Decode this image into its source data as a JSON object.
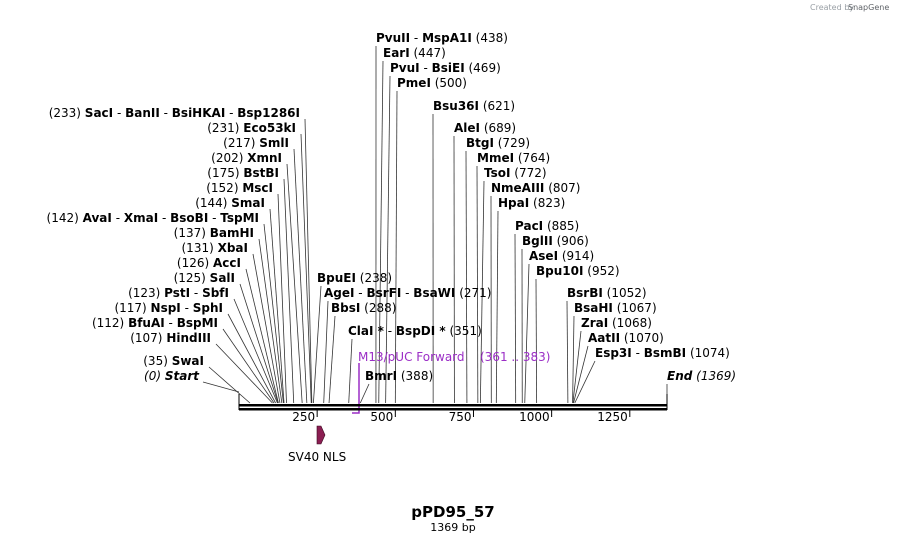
{
  "credit": {
    "prefix": "Created by",
    "brand": "SnapGene"
  },
  "plasmid": {
    "name": "pPD95_57",
    "length_label": "1369 bp",
    "length_bp": 1369
  },
  "axis": {
    "ticks": [
      "250",
      "500",
      "750",
      "1000",
      "1250"
    ]
  },
  "feature": {
    "label": "SV40 NLS",
    "color": "#8b1e52"
  },
  "primer": {
    "label": "M13/pUC Forward",
    "range": "(361 .. 383)",
    "color": "#9b2ec6"
  },
  "sites_left": [
    {
      "names": [
        "SacI",
        "BanII",
        "BsiHKAI",
        "Bsp1286I"
      ],
      "pos": "(233)",
      "bp": 233
    },
    {
      "names": [
        "Eco53kI"
      ],
      "pos": "(231)",
      "bp": 231
    },
    {
      "names": [
        "SmlI"
      ],
      "pos": "(217)",
      "bp": 217
    },
    {
      "names": [
        "XmnI"
      ],
      "pos": "(202)",
      "bp": 202
    },
    {
      "names": [
        "BstBI"
      ],
      "pos": "(175)",
      "bp": 175
    },
    {
      "names": [
        "MscI"
      ],
      "pos": "(152)",
      "bp": 152
    },
    {
      "names": [
        "SmaI"
      ],
      "pos": "(144)",
      "bp": 144
    },
    {
      "names": [
        "AvaI",
        "XmaI",
        "BsoBI",
        "TspMI"
      ],
      "pos": "(142)",
      "bp": 142
    },
    {
      "names": [
        "BamHI"
      ],
      "pos": "(137)",
      "bp": 137
    },
    {
      "names": [
        "XbaI"
      ],
      "pos": "(131)",
      "bp": 131
    },
    {
      "names": [
        "AccI"
      ],
      "pos": "(126)",
      "bp": 126
    },
    {
      "names": [
        "SalI"
      ],
      "pos": "(125)",
      "bp": 125
    },
    {
      "names": [
        "PstI",
        "SbfI"
      ],
      "pos": "(123)",
      "bp": 123
    },
    {
      "names": [
        "NspI",
        "SphI"
      ],
      "pos": "(117)",
      "bp": 117
    },
    {
      "names": [
        "BfuAI",
        "BspMI"
      ],
      "pos": "(112)",
      "bp": 112
    },
    {
      "names": [
        "HindIII"
      ],
      "pos": "(107)",
      "bp": 107
    },
    {
      "names": [
        "SwaI"
      ],
      "pos": "(35)",
      "bp": 35
    },
    {
      "names": [
        "Start"
      ],
      "pos": "(0)",
      "bp": 0,
      "italic": true
    }
  ],
  "sites_right": [
    {
      "names": [
        "PvuII",
        "MspA1I"
      ],
      "pos": "(438)",
      "bp": 438
    },
    {
      "names": [
        "EarI"
      ],
      "pos": "(447)",
      "bp": 447
    },
    {
      "names": [
        "PvuI",
        "BsiEI"
      ],
      "pos": "(469)",
      "bp": 469
    },
    {
      "names": [
        "PmeI"
      ],
      "pos": "(500)",
      "bp": 500
    },
    {
      "names": [
        "Bsu36I"
      ],
      "pos": "(621)",
      "bp": 621
    },
    {
      "names": [
        "AleI"
      ],
      "pos": "(689)",
      "bp": 689
    },
    {
      "names": [
        "BtgI"
      ],
      "pos": "(729)",
      "bp": 729
    },
    {
      "names": [
        "MmeI"
      ],
      "pos": "(764)",
      "bp": 764
    },
    {
      "names": [
        "TsoI"
      ],
      "pos": "(772)",
      "bp": 772
    },
    {
      "names": [
        "NmeAIII"
      ],
      "pos": "(807)",
      "bp": 807
    },
    {
      "names": [
        "HpaI"
      ],
      "pos": "(823)",
      "bp": 823
    },
    {
      "names": [
        "PacI"
      ],
      "pos": "(885)",
      "bp": 885
    },
    {
      "names": [
        "BglII"
      ],
      "pos": "(906)",
      "bp": 906
    },
    {
      "names": [
        "AseI"
      ],
      "pos": "(914)",
      "bp": 914
    },
    {
      "names": [
        "Bpu10I"
      ],
      "pos": "(952)",
      "bp": 952
    },
    {
      "names": [
        "BsrBI"
      ],
      "pos": "(1052)",
      "bp": 1052
    },
    {
      "names": [
        "BsaHI"
      ],
      "pos": "(1067)",
      "bp": 1067
    },
    {
      "names": [
        "ZraI"
      ],
      "pos": "(1068)",
      "bp": 1068
    },
    {
      "names": [
        "AatII"
      ],
      "pos": "(1070)",
      "bp": 1070
    },
    {
      "names": [
        "Esp3I",
        "BsmBI"
      ],
      "pos": "(1074)",
      "bp": 1074
    },
    {
      "names": [
        "End"
      ],
      "pos": "(1369)",
      "bp": 1369,
      "italic": true
    }
  ],
  "sites_mid": [
    {
      "names": [
        "BpuEI"
      ],
      "pos": "(238)",
      "bp": 238
    },
    {
      "names": [
        "AgeI",
        "BsrFI",
        "BsaWI"
      ],
      "pos": "(271)",
      "bp": 271
    },
    {
      "names": [
        "BbsI"
      ],
      "pos": "(288)",
      "bp": 288
    },
    {
      "names": [
        "ClaI *",
        "BspDI *"
      ],
      "pos": "(351)",
      "bp": 351
    },
    {
      "names": [
        "BmrI"
      ],
      "pos": "(388)",
      "bp": 388
    }
  ]
}
